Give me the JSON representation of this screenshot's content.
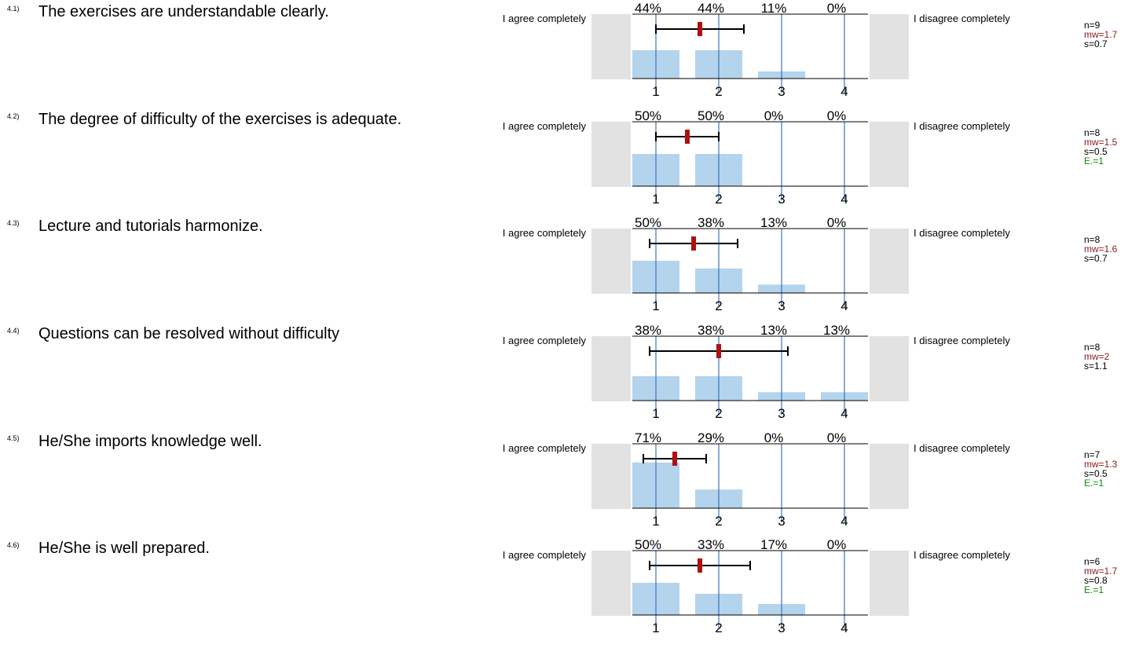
{
  "left_label": "I agree completely",
  "right_label": "I disagree completely",
  "colors": {
    "bar": "#b4d3ec",
    "gridline": "#3a74b8",
    "mean_marker": "#b01010",
    "side_box": "#e2e2e2"
  },
  "chart_data": [
    {
      "type": "bar",
      "number": "4.1)",
      "question": "The exercises are understandable clearly.",
      "categories": [
        "1",
        "2",
        "3",
        "4"
      ],
      "values": [
        44,
        44,
        11,
        0
      ],
      "labels": [
        "44%",
        "44%",
        "11%",
        "0%"
      ],
      "mean": 1.7,
      "sd": 0.7,
      "n_text": "n=9",
      "mw_text": "mw=1.7",
      "s_text": "s=0.7",
      "e_text": ""
    },
    {
      "type": "bar",
      "number": "4.2)",
      "question": "The degree of difficulty of the exercises is adequate.",
      "categories": [
        "1",
        "2",
        "3",
        "4"
      ],
      "values": [
        50,
        50,
        0,
        0
      ],
      "labels": [
        "50%",
        "50%",
        "0%",
        "0%"
      ],
      "mean": 1.5,
      "sd": 0.5,
      "n_text": "n=8",
      "mw_text": "mw=1.5",
      "s_text": "s=0.5",
      "e_text": "E.=1"
    },
    {
      "type": "bar",
      "number": "4.3)",
      "question": "Lecture and tutorials harmonize.",
      "categories": [
        "1",
        "2",
        "3",
        "4"
      ],
      "values": [
        50,
        38,
        13,
        0
      ],
      "labels": [
        "50%",
        "38%",
        "13%",
        "0%"
      ],
      "mean": 1.6,
      "sd": 0.7,
      "n_text": "n=8",
      "mw_text": "mw=1.6",
      "s_text": "s=0.7",
      "e_text": ""
    },
    {
      "type": "bar",
      "number": "4.4)",
      "question": "Questions can be resolved without difficulty",
      "categories": [
        "1",
        "2",
        "3",
        "4"
      ],
      "values": [
        38,
        38,
        13,
        13
      ],
      "labels": [
        "38%",
        "38%",
        "13%",
        "13%"
      ],
      "mean": 2,
      "sd": 1.1,
      "n_text": "n=8",
      "mw_text": "mw=2",
      "s_text": "s=1.1",
      "e_text": ""
    },
    {
      "type": "bar",
      "number": "4.5)",
      "question": "He/She imports knowledge well.",
      "categories": [
        "1",
        "2",
        "3",
        "4"
      ],
      "values": [
        71,
        29,
        0,
        0
      ],
      "labels": [
        "71%",
        "29%",
        "0%",
        "0%"
      ],
      "mean": 1.3,
      "sd": 0.5,
      "n_text": "n=7",
      "mw_text": "mw=1.3",
      "s_text": "s=0.5",
      "e_text": "E.=1"
    },
    {
      "type": "bar",
      "number": "4.6)",
      "question": "He/She is well prepared.",
      "categories": [
        "1",
        "2",
        "3",
        "4"
      ],
      "values": [
        50,
        33,
        17,
        0
      ],
      "labels": [
        "50%",
        "33%",
        "17%",
        "0%"
      ],
      "mean": 1.7,
      "sd": 0.8,
      "n_text": "n=6",
      "mw_text": "mw=1.7",
      "s_text": "s=0.8",
      "e_text": "E.=1"
    }
  ]
}
